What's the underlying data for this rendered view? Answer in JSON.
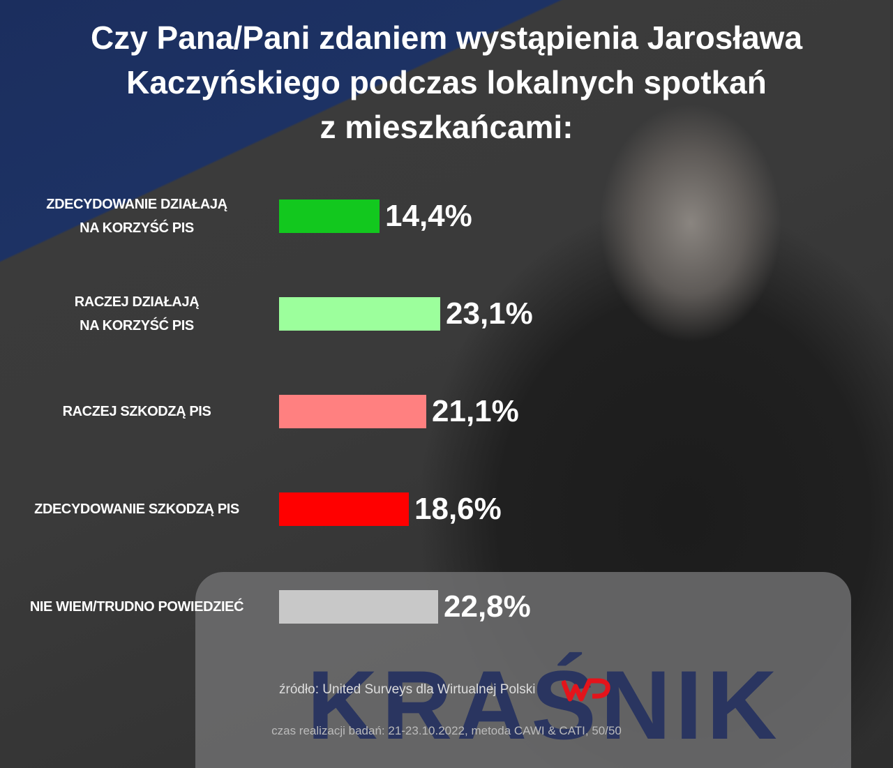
{
  "chart_data": {
    "type": "bar",
    "orientation": "horizontal",
    "title": "Czy Pana/Pani zdaniem wystąpienia Jarosława\nKaczyńskiego podczas lokalnych spotkań\nz mieszkańcami:",
    "categories": [
      "ZDECYDOWANIE DZIAŁAJĄ\nNA KORZYŚĆ PIS",
      "RACZEJ DZIAŁAJĄ\nNA KORZYŚĆ PIS",
      "RACZEJ SZKODZĄ PIS",
      "ZDECYDOWANIE SZKODZĄ PIS",
      "NIE WIEM/TRUDNO POWIEDZIEĆ"
    ],
    "values": [
      14.4,
      23.1,
      21.1,
      18.6,
      22.8
    ],
    "value_labels": [
      "14,4%",
      "23,1%",
      "21,1%",
      "18,6%",
      "22,8%"
    ],
    "colors": [
      "#12c81e",
      "#9cff9c",
      "#ff8080",
      "#ff0000",
      "#c8c8c8"
    ],
    "source": "źródło: United Surveys dla Wirtualnej Polski",
    "note": "czas realizacji badań: 21-23.10.2022, metoda CAWI & CATI, 50/50"
  }
}
